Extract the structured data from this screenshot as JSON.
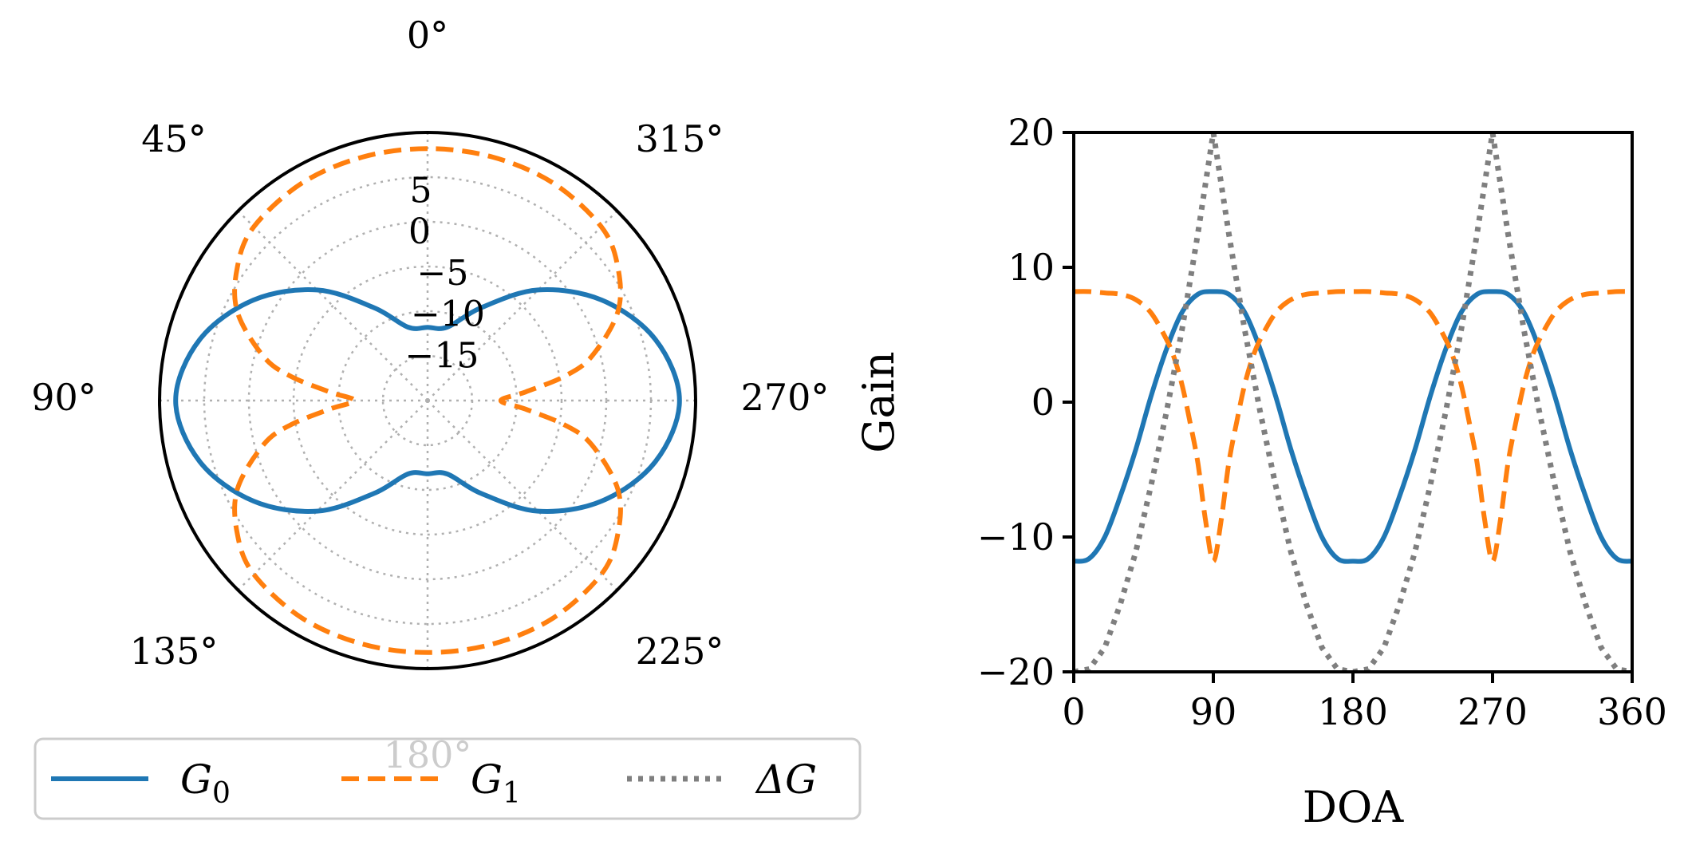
{
  "chart_data": [
    {
      "type": "line",
      "projection": "polar",
      "theta_direction": "counter-clockwise",
      "theta_zero": "top",
      "angle_ticks": [
        {
          "deg": 0,
          "label": "0°"
        },
        {
          "deg": 45,
          "label": "45°"
        },
        {
          "deg": 90,
          "label": "90°"
        },
        {
          "deg": 135,
          "label": "135°"
        },
        {
          "deg": 180,
          "label": "180°"
        },
        {
          "deg": 225,
          "label": "225°"
        },
        {
          "deg": 270,
          "label": "270°"
        },
        {
          "deg": 315,
          "label": "315°"
        }
      ],
      "radial_ticks": [
        {
          "value": -15,
          "label": "−15"
        },
        {
          "value": -10,
          "label": "−10"
        },
        {
          "value": -5,
          "label": "−5"
        },
        {
          "value": 0,
          "label": "0"
        },
        {
          "value": 5,
          "label": "5"
        }
      ],
      "rlim": [
        -20,
        10
      ],
      "grid": true,
      "series": [
        {
          "name": "G₀",
          "color": "#1f77b4",
          "style": "solid",
          "theta": [
            0,
            15,
            30,
            45,
            60,
            75,
            90,
            105,
            120,
            135,
            150,
            165,
            180,
            195,
            210,
            225,
            240,
            255,
            270,
            285,
            300,
            315,
            330,
            345,
            360
          ],
          "values": [
            -11.8,
            -11.5,
            -8.0,
            -2.5,
            2.5,
            6.4,
            8.2,
            6.4,
            2.5,
            -2.5,
            -8.0,
            -11.5,
            -11.8,
            -11.5,
            -8.0,
            -2.5,
            2.5,
            6.4,
            8.2,
            6.4,
            2.5,
            -2.5,
            -8.0,
            -11.5,
            -11.8
          ]
        },
        {
          "name": "G₁",
          "color": "#ff7f0e",
          "style": "dashed",
          "theta": [
            0,
            15,
            30,
            45,
            55,
            65,
            75,
            80,
            85,
            90,
            95,
            100,
            105,
            115,
            125,
            135,
            150,
            165,
            180,
            195,
            210,
            225,
            235,
            245,
            255,
            260,
            265,
            270,
            275,
            280,
            285,
            295,
            305,
            315,
            330,
            345,
            360
          ],
          "values": [
            8.2,
            8.2,
            8.1,
            7.5,
            6.0,
            3.5,
            -1.0,
            -4.5,
            -9.0,
            -11.8,
            -9.0,
            -4.5,
            -1.0,
            3.5,
            6.0,
            7.5,
            8.1,
            8.2,
            8.2,
            8.2,
            8.1,
            7.5,
            6.0,
            3.5,
            -1.0,
            -4.5,
            -9.0,
            -11.8,
            -9.0,
            -4.5,
            -1.0,
            3.5,
            6.0,
            7.5,
            8.1,
            8.2,
            8.2
          ]
        }
      ]
    },
    {
      "type": "line",
      "xlabel": "DOA",
      "ylabel": "Gain",
      "xlim": [
        0,
        360
      ],
      "ylim": [
        -20,
        20
      ],
      "xticks": [
        0,
        90,
        180,
        270,
        360
      ],
      "xtick_labels": [
        "0",
        "90",
        "180",
        "270",
        "360"
      ],
      "yticks": [
        -20,
        -10,
        0,
        10,
        20
      ],
      "ytick_labels": [
        "−20",
        "−10",
        "0",
        "10",
        "20"
      ],
      "series": [
        {
          "name": "G₀",
          "color": "#1f77b4",
          "style": "solid",
          "x": [
            0,
            10,
            20,
            30,
            40,
            50,
            60,
            70,
            80,
            90,
            100,
            110,
            120,
            130,
            140,
            150,
            160,
            170,
            180,
            190,
            200,
            210,
            220,
            230,
            240,
            250,
            260,
            270,
            280,
            290,
            300,
            310,
            320,
            330,
            340,
            350,
            360
          ],
          "y": [
            -11.8,
            -11.6,
            -10.0,
            -7.0,
            -3.5,
            0.5,
            4.0,
            6.7,
            8.0,
            8.2,
            8.0,
            6.7,
            4.0,
            0.5,
            -3.5,
            -7.0,
            -10.0,
            -11.6,
            -11.8,
            -11.6,
            -10.0,
            -7.0,
            -3.5,
            0.5,
            4.0,
            6.7,
            8.0,
            8.2,
            8.0,
            6.7,
            4.0,
            0.5,
            -3.5,
            -7.0,
            -10.0,
            -11.6,
            -11.8
          ]
        },
        {
          "name": "G₁",
          "color": "#ff7f0e",
          "style": "dashed",
          "x": [
            0,
            10,
            20,
            30,
            40,
            50,
            60,
            65,
            70,
            75,
            80,
            85,
            90,
            95,
            100,
            105,
            110,
            115,
            120,
            130,
            140,
            150,
            160,
            170,
            180,
            190,
            200,
            210,
            220,
            230,
            240,
            245,
            250,
            255,
            260,
            265,
            270,
            275,
            280,
            285,
            290,
            295,
            300,
            310,
            320,
            330,
            340,
            350,
            360
          ],
          "y": [
            8.2,
            8.2,
            8.1,
            8.0,
            7.6,
            6.6,
            4.6,
            3.2,
            1.2,
            -1.5,
            -4.5,
            -8.8,
            -11.8,
            -8.8,
            -4.5,
            -1.5,
            1.2,
            3.2,
            4.6,
            6.6,
            7.6,
            8.0,
            8.1,
            8.2,
            8.2,
            8.2,
            8.1,
            8.0,
            7.6,
            6.6,
            4.6,
            3.2,
            1.2,
            -1.5,
            -4.5,
            -8.8,
            -11.8,
            -8.8,
            -4.5,
            -1.5,
            1.2,
            3.2,
            4.6,
            6.6,
            7.6,
            8.0,
            8.1,
            8.2,
            8.2
          ]
        },
        {
          "name": "ΔG",
          "color": "#7f7f7f",
          "style": "dotted",
          "x": [
            0,
            10,
            20,
            30,
            40,
            50,
            60,
            70,
            80,
            90,
            100,
            110,
            120,
            130,
            140,
            150,
            160,
            170,
            180,
            190,
            200,
            210,
            220,
            230,
            240,
            250,
            260,
            270,
            280,
            290,
            300,
            310,
            320,
            330,
            340,
            350,
            360
          ],
          "y": [
            -20,
            -19.8,
            -18.2,
            -15.0,
            -11.1,
            -6.1,
            -0.6,
            5.5,
            12.5,
            20,
            12.5,
            5.5,
            -0.6,
            -6.1,
            -11.1,
            -15.0,
            -18.2,
            -19.8,
            -20,
            -19.8,
            -18.2,
            -15.0,
            -11.1,
            -6.1,
            -0.6,
            5.5,
            12.5,
            20,
            12.5,
            5.5,
            -0.6,
            -6.1,
            -11.1,
            -15.0,
            -18.2,
            -19.8,
            -20
          ]
        }
      ]
    }
  ],
  "legend": {
    "placement": "lower-left",
    "items": [
      {
        "label": "G",
        "sub": "0",
        "color": "#1f77b4",
        "style": "solid"
      },
      {
        "label": "G",
        "sub": "1",
        "color": "#ff7f0e",
        "style": "dashed"
      },
      {
        "label": "ΔG",
        "sub": "",
        "color": "#7f7f7f",
        "style": "dotted"
      }
    ]
  }
}
